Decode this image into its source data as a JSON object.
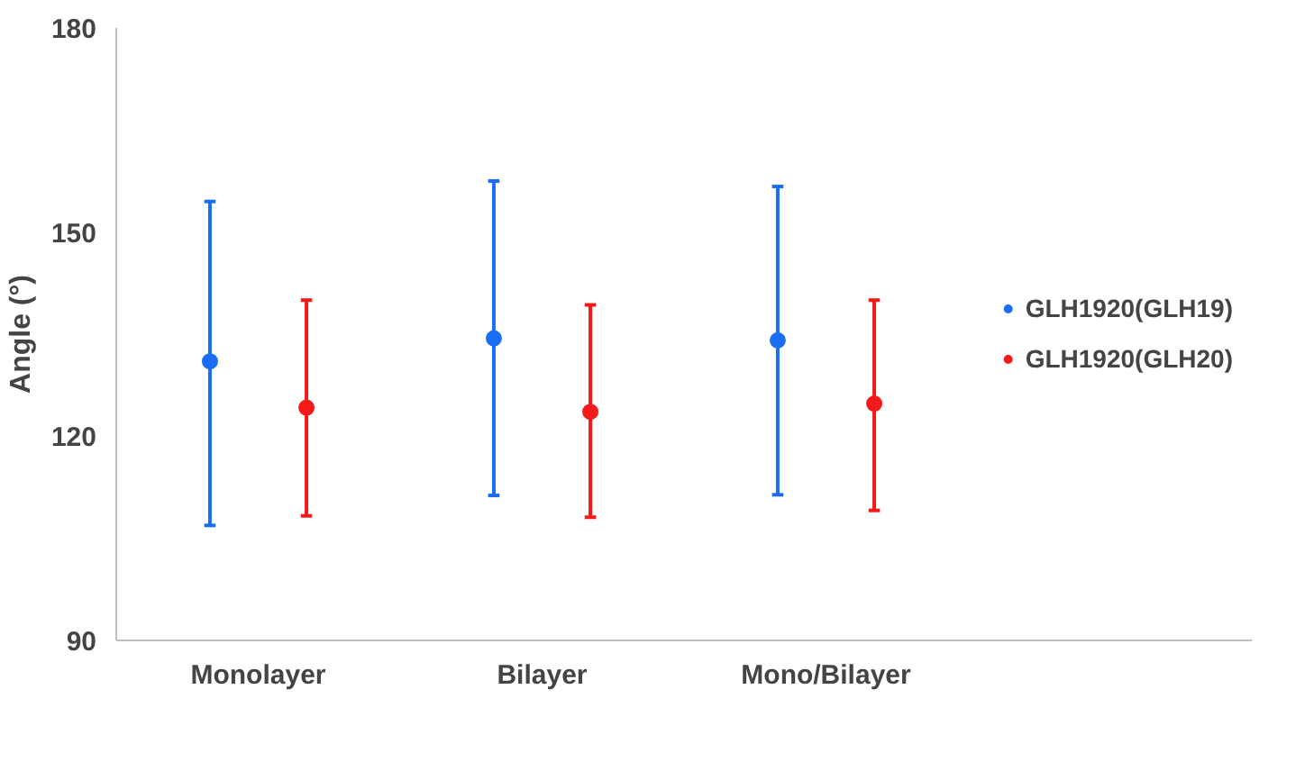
{
  "chart_data": {
    "type": "scatter",
    "ylabel": "Angle (°)",
    "categories": [
      "Monolayer",
      "Bilayer",
      "Mono/Bilayer"
    ],
    "series": [
      {
        "name": "GLH1920(GLH19)",
        "color": "#1a6ef5",
        "values": [
          131.0,
          134.4,
          134.1
        ],
        "errors": [
          [
            106.9,
            154.5
          ],
          [
            111.3,
            157.5
          ],
          [
            111.4,
            156.7
          ]
        ]
      },
      {
        "name": "GLH1920(GLH20)",
        "color": "#f51a1a",
        "values": [
          124.2,
          123.6,
          124.8
        ],
        "errors": [
          [
            108.3,
            140.0
          ],
          [
            108.1,
            139.3
          ],
          [
            109.1,
            140.0
          ]
        ]
      }
    ],
    "ylim": [
      90,
      180
    ],
    "yticks": [
      90,
      120,
      150,
      180
    ],
    "grid": false,
    "legend": "right",
    "marker": "circle"
  }
}
